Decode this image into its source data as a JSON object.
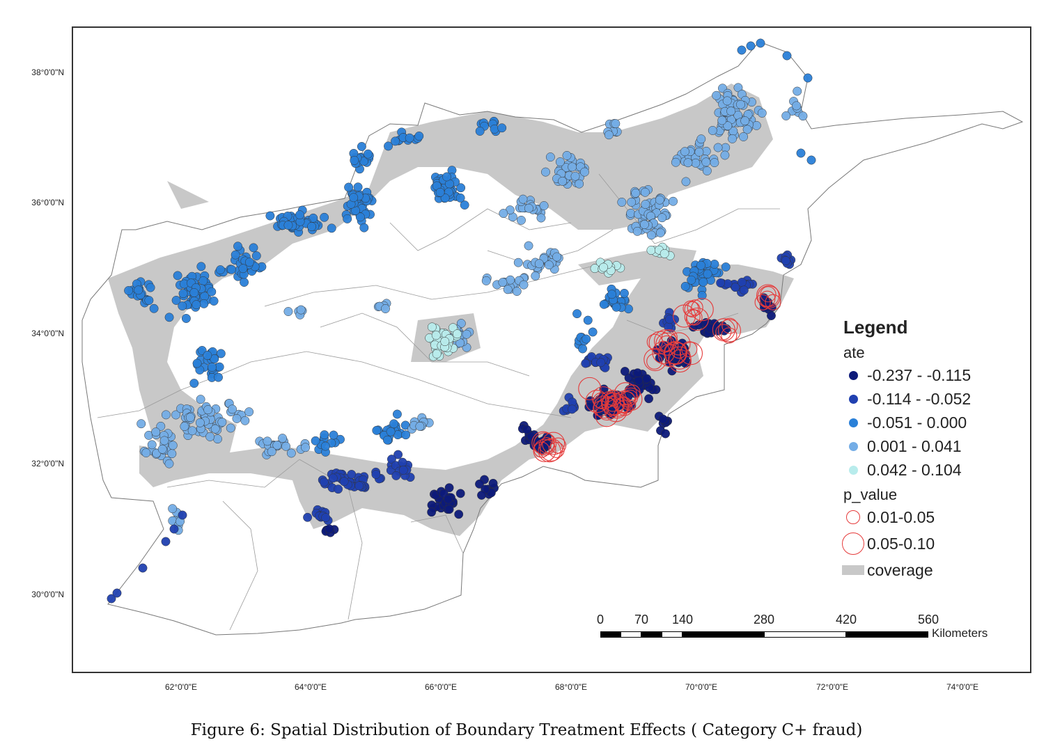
{
  "figure": {
    "caption": "Figure 6: Spatial Distribution of Boundary Treatment Effects ( Category C+ fraud)"
  },
  "axes": {
    "lat_ticks": [
      "38°0'0\"N",
      "36°0'0\"N",
      "34°0'0\"N",
      "32°0'0\"N",
      "30°0'0\"N"
    ],
    "lon_ticks": [
      "62°0'0\"E",
      "64°0'0\"E",
      "66°0'0\"E",
      "68°0'0\"E",
      "70°0'0\"E",
      "72°0'0\"E",
      "74°0'0\"E"
    ]
  },
  "legend": {
    "title": "Legend",
    "ate_label": "ate",
    "ate_classes": [
      {
        "label": "-0.237 - -0.115",
        "color": "#0d1a7a"
      },
      {
        "label": "-0.114 - -0.052",
        "color": "#2040b0"
      },
      {
        "label": "-0.051 - 0.000",
        "color": "#2a80d8"
      },
      {
        "label": "0.001 - 0.041",
        "color": "#74ade6"
      },
      {
        "label": "0.042 - 0.104",
        "color": "#b8ecec"
      }
    ],
    "p_label": "p_value",
    "p_classes": [
      {
        "label": "0.01-0.05",
        "symbol": "small-red-ring"
      },
      {
        "label": "0.05-0.10",
        "symbol": "large-red-ring"
      }
    ],
    "coverage_label": "coverage",
    "coverage_color": "#c8c8c8",
    "ring_color": "#e53a3a"
  },
  "scale_bar": {
    "ticks": [
      "0",
      "70",
      "140",
      "280",
      "420",
      "560"
    ],
    "unit": "Kilometers"
  }
}
